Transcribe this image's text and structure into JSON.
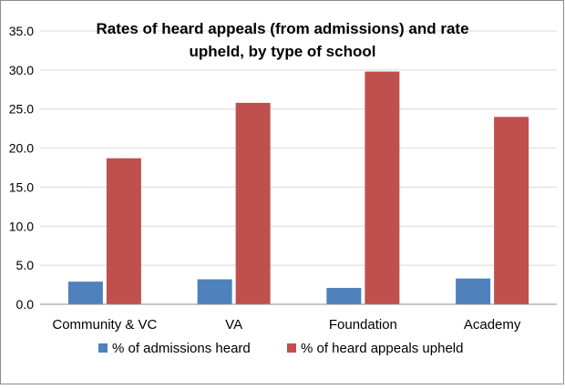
{
  "chart_data": {
    "type": "bar",
    "title_line1": "Rates of heard appeals (from admissions) and rate",
    "title_line2": "upheld, by type of school",
    "categories": [
      "Community & VC",
      "VA",
      "Foundation",
      "Academy"
    ],
    "series": [
      {
        "name": "% of admissions heard",
        "values": [
          2.9,
          3.2,
          2.1,
          3.3
        ],
        "color": "#4f81bd"
      },
      {
        "name": "% of heard appeals upheld",
        "values": [
          18.7,
          25.8,
          29.8,
          24.0
        ],
        "color": "#c0504d"
      }
    ],
    "ylim": [
      0,
      35
    ],
    "yticks": [
      "0.0",
      "5.0",
      "10.0",
      "15.0",
      "20.0",
      "25.0",
      "30.0",
      "35.0"
    ],
    "grid": true,
    "legend_position": "bottom"
  }
}
